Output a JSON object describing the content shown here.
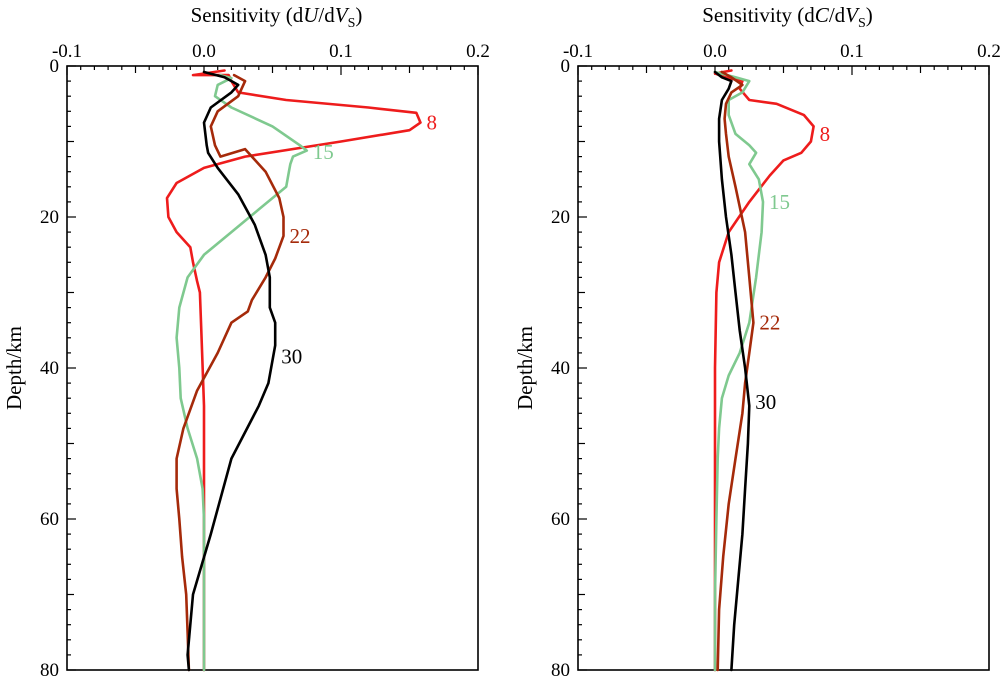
{
  "chart_data": [
    {
      "type": "line",
      "title": "",
      "xlabel": {
        "prefix": "Sensitivity (d",
        "var": "U",
        "mid": "/d",
        "var2": "V",
        "sub": "S",
        "suffix": ")"
      },
      "ylabel": "Depth/km",
      "xlim": [
        -0.1,
        0.2
      ],
      "ylim": [
        0,
        80
      ],
      "xticks": [
        -0.1,
        0.0,
        0.1,
        0.2
      ],
      "xtick_labels": [
        "-0.1",
        "0.0",
        "0.1",
        "0.2"
      ],
      "yticks": [
        0,
        20,
        40,
        60,
        80
      ],
      "ytick_labels": [
        "0",
        "20",
        "40",
        "60",
        "80"
      ],
      "series": [
        {
          "name": "8",
          "color": "#ee1c1c",
          "label_at": [
            0.158,
            7.5
          ],
          "points": [
            [
              0.015,
              0.6
            ],
            [
              -0.008,
              1.2
            ],
            [
              0.018,
              1.2
            ],
            [
              0.02,
              2.0
            ],
            [
              0.025,
              3.5
            ],
            [
              0.06,
              4.5
            ],
            [
              0.12,
              5.5
            ],
            [
              0.155,
              6.2
            ],
            [
              0.158,
              7.5
            ],
            [
              0.15,
              8.5
            ],
            [
              0.1,
              10.0
            ],
            [
              0.03,
              12.0
            ],
            [
              0.0,
              13.5
            ],
            [
              -0.02,
              15.5
            ],
            [
              -0.027,
              17.5
            ],
            [
              -0.026,
              20.0
            ],
            [
              -0.02,
              22.0
            ],
            [
              -0.01,
              24.0
            ],
            [
              -0.008,
              26.0
            ],
            [
              -0.005,
              28.5
            ],
            [
              -0.003,
              30.0
            ],
            [
              -0.002,
              35.0
            ],
            [
              0.0,
              45.0
            ],
            [
              0.0,
              60.0
            ],
            [
              0.0,
              80.0
            ]
          ]
        },
        {
          "name": "15",
          "color": "#7fc98f",
          "label_at": [
            0.075,
            11.4
          ],
          "points": [
            [
              0.012,
              1.2
            ],
            [
              0.02,
              1.6
            ],
            [
              0.01,
              2.5
            ],
            [
              0.008,
              4.0
            ],
            [
              0.02,
              5.5
            ],
            [
              0.05,
              8.0
            ],
            [
              0.07,
              10.5
            ],
            [
              0.075,
              11.2
            ],
            [
              0.065,
              12.0
            ],
            [
              0.063,
              13.0
            ],
            [
              0.062,
              14.0
            ],
            [
              0.06,
              16.0
            ],
            [
              0.04,
              19.0
            ],
            [
              0.02,
              22.0
            ],
            [
              0.0,
              25.0
            ],
            [
              -0.012,
              28.0
            ],
            [
              -0.018,
              32.0
            ],
            [
              -0.02,
              36.0
            ],
            [
              -0.018,
              40.0
            ],
            [
              -0.017,
              44.0
            ],
            [
              -0.012,
              48.0
            ],
            [
              -0.005,
              52.0
            ],
            [
              -0.001,
              56.0
            ],
            [
              0.0,
              60.0
            ],
            [
              0.0,
              70.0
            ],
            [
              0.0,
              80.0
            ]
          ]
        },
        {
          "name": "22",
          "color": "#a52a0a",
          "label_at": [
            0.058,
            22.5
          ],
          "points": [
            [
              0.022,
              1.2
            ],
            [
              0.03,
              2.0
            ],
            [
              0.025,
              4.0
            ],
            [
              0.01,
              6.0
            ],
            [
              0.005,
              8.0
            ],
            [
              0.008,
              10.5
            ],
            [
              0.012,
              12.0
            ],
            [
              0.03,
              11.0
            ],
            [
              0.045,
              14.0
            ],
            [
              0.055,
              17.5
            ],
            [
              0.058,
              20.0
            ],
            [
              0.058,
              22.5
            ],
            [
              0.052,
              25.5
            ],
            [
              0.045,
              28.0
            ],
            [
              0.035,
              31.0
            ],
            [
              0.032,
              32.5
            ],
            [
              0.02,
              34.0
            ],
            [
              0.01,
              38.0
            ],
            [
              -0.005,
              43.0
            ],
            [
              -0.015,
              48.0
            ],
            [
              -0.02,
              52.0
            ],
            [
              -0.02,
              56.0
            ],
            [
              -0.018,
              60.0
            ],
            [
              -0.016,
              65.0
            ],
            [
              -0.013,
              70.0
            ],
            [
              -0.012,
              75.0
            ],
            [
              -0.011,
              80.0
            ]
          ]
        },
        {
          "name": "30",
          "color": "#000000",
          "label_at": [
            0.052,
            38.5
          ],
          "points": [
            [
              0.0,
              0.8
            ],
            [
              0.015,
              1.5
            ],
            [
              0.025,
              2.5
            ],
            [
              0.02,
              3.5
            ],
            [
              0.005,
              5.5
            ],
            [
              0.0,
              7.5
            ],
            [
              0.002,
              10.5
            ],
            [
              0.003,
              11.5
            ],
            [
              0.01,
              13.5
            ],
            [
              0.025,
              17.0
            ],
            [
              0.037,
              21.0
            ],
            [
              0.045,
              25.0
            ],
            [
              0.048,
              28.0
            ],
            [
              0.048,
              32.0
            ],
            [
              0.052,
              34.0
            ],
            [
              0.052,
              37.0
            ],
            [
              0.047,
              42.0
            ],
            [
              0.04,
              45.0
            ],
            [
              0.02,
              52.0
            ],
            [
              0.005,
              62.0
            ],
            [
              -0.008,
              70.0
            ],
            [
              -0.012,
              78.0
            ],
            [
              -0.011,
              80.0
            ]
          ]
        }
      ]
    },
    {
      "type": "line",
      "title": "",
      "xlabel": {
        "prefix": "Sensitivity (d",
        "var": "C",
        "mid": "/d",
        "var2": "V",
        "sub": "S",
        "suffix": ")"
      },
      "ylabel": "Depth/km",
      "xlim": [
        -0.1,
        0.2
      ],
      "ylim": [
        0,
        80
      ],
      "xticks": [
        -0.1,
        0.0,
        0.1,
        0.2
      ],
      "xtick_labels": [
        "-0.1",
        "0.0",
        "0.1",
        "0.2"
      ],
      "yticks": [
        0,
        20,
        40,
        60,
        80
      ],
      "ytick_labels": [
        "0",
        "20",
        "40",
        "60",
        "80"
      ],
      "series": [
        {
          "name": "8",
          "color": "#ee1c1c",
          "label_at": [
            0.072,
            9.0
          ],
          "points": [
            [
              0.012,
              0.6
            ],
            [
              0.0,
              1.0
            ],
            [
              0.008,
              1.5
            ],
            [
              0.02,
              2.0
            ],
            [
              0.018,
              3.0
            ],
            [
              0.025,
              4.5
            ],
            [
              0.045,
              5.0
            ],
            [
              0.065,
              6.5
            ],
            [
              0.072,
              8.0
            ],
            [
              0.07,
              10.0
            ],
            [
              0.063,
              11.5
            ],
            [
              0.05,
              12.5
            ],
            [
              0.04,
              14.5
            ],
            [
              0.025,
              18.0
            ],
            [
              0.01,
              22.0
            ],
            [
              0.003,
              26.0
            ],
            [
              0.001,
              30.0
            ],
            [
              0.0,
              40.0
            ],
            [
              0.0,
              60.0
            ],
            [
              0.0,
              80.0
            ]
          ]
        },
        {
          "name": "15",
          "color": "#7fc98f",
          "label_at": [
            0.035,
            18.0
          ],
          "points": [
            [
              0.0,
              0.8
            ],
            [
              0.015,
              1.5
            ],
            [
              0.025,
              2.0
            ],
            [
              0.02,
              3.5
            ],
            [
              0.01,
              4.5
            ],
            [
              0.01,
              6.5
            ],
            [
              0.015,
              9.0
            ],
            [
              0.025,
              10.5
            ],
            [
              0.03,
              11.5
            ],
            [
              0.025,
              13.0
            ],
            [
              0.032,
              15.0
            ],
            [
              0.035,
              18.0
            ],
            [
              0.034,
              22.0
            ],
            [
              0.03,
              28.0
            ],
            [
              0.025,
              34.0
            ],
            [
              0.018,
              38.0
            ],
            [
              0.01,
              41.0
            ],
            [
              0.005,
              44.0
            ],
            [
              0.003,
              48.0
            ],
            [
              0.002,
              52.0
            ],
            [
              0.001,
              60.0
            ],
            [
              0.0,
              70.0
            ],
            [
              0.0,
              80.0
            ]
          ]
        },
        {
          "name": "22",
          "color": "#a52a0a",
          "label_at": [
            0.028,
            34.0
          ],
          "points": [
            [
              0.005,
              0.8
            ],
            [
              0.012,
              1.5
            ],
            [
              0.02,
              2.5
            ],
            [
              0.012,
              3.5
            ],
            [
              0.008,
              5.0
            ],
            [
              0.007,
              7.0
            ],
            [
              0.008,
              9.0
            ],
            [
              0.01,
              12.0
            ],
            [
              0.015,
              16.0
            ],
            [
              0.022,
              22.0
            ],
            [
              0.025,
              28.0
            ],
            [
              0.028,
              34.0
            ],
            [
              0.025,
              38.0
            ],
            [
              0.022,
              42.0
            ],
            [
              0.02,
              46.0
            ],
            [
              0.015,
              52.0
            ],
            [
              0.01,
              58.0
            ],
            [
              0.006,
              65.0
            ],
            [
              0.003,
              72.0
            ],
            [
              0.002,
              80.0
            ]
          ]
        },
        {
          "name": "30",
          "color": "#000000",
          "label_at": [
            0.025,
            44.5
          ],
          "points": [
            [
              0.0,
              0.8
            ],
            [
              0.005,
              1.5
            ],
            [
              0.012,
              2.0
            ],
            [
              0.01,
              3.0
            ],
            [
              0.005,
              4.5
            ],
            [
              0.003,
              7.0
            ],
            [
              0.003,
              10.0
            ],
            [
              0.005,
              15.0
            ],
            [
              0.008,
              20.0
            ],
            [
              0.012,
              25.0
            ],
            [
              0.015,
              30.0
            ],
            [
              0.018,
              35.0
            ],
            [
              0.022,
              40.0
            ],
            [
              0.025,
              45.0
            ],
            [
              0.024,
              50.0
            ],
            [
              0.022,
              56.0
            ],
            [
              0.02,
              62.0
            ],
            [
              0.017,
              68.0
            ],
            [
              0.014,
              74.0
            ],
            [
              0.012,
              80.0
            ]
          ]
        }
      ]
    }
  ]
}
